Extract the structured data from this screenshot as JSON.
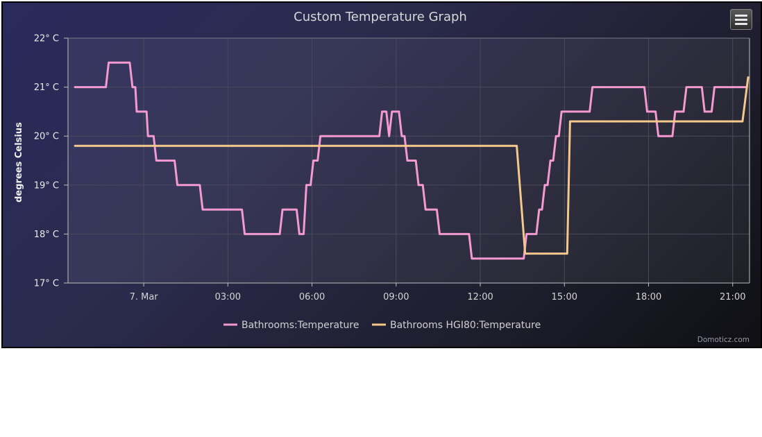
{
  "chart_data": {
    "type": "line",
    "title": "Custom Temperature Graph",
    "ylabel": "degrees Celsius",
    "y_tick_labels": [
      "17° C",
      "18° C",
      "19° C",
      "20° C",
      "21° C",
      "22° C"
    ],
    "ylim": [
      17,
      22
    ],
    "x_tick_labels": [
      "7. Mar",
      "03:00",
      "06:00",
      "09:00",
      "12:00",
      "15:00",
      "18:00",
      "21:00"
    ],
    "x_tick_hours": [
      0,
      3,
      6,
      9,
      12,
      15,
      18,
      21
    ],
    "xlim_hours": [
      -2.7,
      21.6
    ],
    "grid": true,
    "legend_position": "bottom",
    "credits": "Domoticz.com",
    "series": [
      {
        "name": "Bathrooms:Temperature",
        "color": "#f49ad0",
        "points": [
          [
            -2.45,
            21.0
          ],
          [
            -1.35,
            21.0
          ],
          [
            -1.25,
            21.5
          ],
          [
            -0.5,
            21.5
          ],
          [
            -0.4,
            21.0
          ],
          [
            -0.3,
            21.0
          ],
          [
            -0.25,
            20.5
          ],
          [
            0.1,
            20.5
          ],
          [
            0.15,
            20.0
          ],
          [
            0.35,
            20.0
          ],
          [
            0.45,
            19.5
          ],
          [
            1.1,
            19.5
          ],
          [
            1.2,
            19.0
          ],
          [
            2.0,
            19.0
          ],
          [
            2.1,
            18.5
          ],
          [
            3.5,
            18.5
          ],
          [
            3.6,
            18.0
          ],
          [
            4.85,
            18.0
          ],
          [
            4.95,
            18.5
          ],
          [
            5.45,
            18.5
          ],
          [
            5.55,
            18.0
          ],
          [
            5.7,
            18.0
          ],
          [
            5.8,
            19.0
          ],
          [
            5.95,
            19.0
          ],
          [
            6.05,
            19.5
          ],
          [
            6.2,
            19.5
          ],
          [
            6.3,
            20.0
          ],
          [
            8.4,
            20.0
          ],
          [
            8.5,
            20.5
          ],
          [
            8.65,
            20.5
          ],
          [
            8.75,
            20.0
          ],
          [
            8.85,
            20.5
          ],
          [
            9.1,
            20.5
          ],
          [
            9.2,
            20.0
          ],
          [
            9.3,
            20.0
          ],
          [
            9.4,
            19.5
          ],
          [
            9.7,
            19.5
          ],
          [
            9.8,
            19.0
          ],
          [
            9.95,
            19.0
          ],
          [
            10.05,
            18.5
          ],
          [
            10.45,
            18.5
          ],
          [
            10.55,
            18.0
          ],
          [
            11.6,
            18.0
          ],
          [
            11.7,
            17.5
          ],
          [
            13.55,
            17.5
          ],
          [
            13.65,
            18.0
          ],
          [
            14.0,
            18.0
          ],
          [
            14.1,
            18.5
          ],
          [
            14.2,
            18.5
          ],
          [
            14.3,
            19.0
          ],
          [
            14.4,
            19.0
          ],
          [
            14.5,
            19.5
          ],
          [
            14.6,
            19.5
          ],
          [
            14.7,
            20.0
          ],
          [
            14.8,
            20.0
          ],
          [
            14.9,
            20.5
          ],
          [
            15.9,
            20.5
          ],
          [
            16.0,
            21.0
          ],
          [
            17.85,
            21.0
          ],
          [
            17.95,
            20.5
          ],
          [
            18.25,
            20.5
          ],
          [
            18.35,
            20.0
          ],
          [
            18.85,
            20.0
          ],
          [
            18.95,
            20.5
          ],
          [
            19.25,
            20.5
          ],
          [
            19.35,
            21.0
          ],
          [
            19.9,
            21.0
          ],
          [
            20.0,
            20.5
          ],
          [
            20.25,
            20.5
          ],
          [
            20.35,
            21.0
          ],
          [
            21.5,
            21.0
          ]
        ]
      },
      {
        "name": "Bathrooms HGI80:Temperature",
        "color": "#f5c98c",
        "points": [
          [
            -2.45,
            19.8
          ],
          [
            13.3,
            19.8
          ],
          [
            13.6,
            17.6
          ],
          [
            14.5,
            17.6
          ],
          [
            15.1,
            17.6
          ],
          [
            15.2,
            20.3
          ],
          [
            21.35,
            20.3
          ],
          [
            21.55,
            21.2
          ]
        ]
      }
    ]
  }
}
